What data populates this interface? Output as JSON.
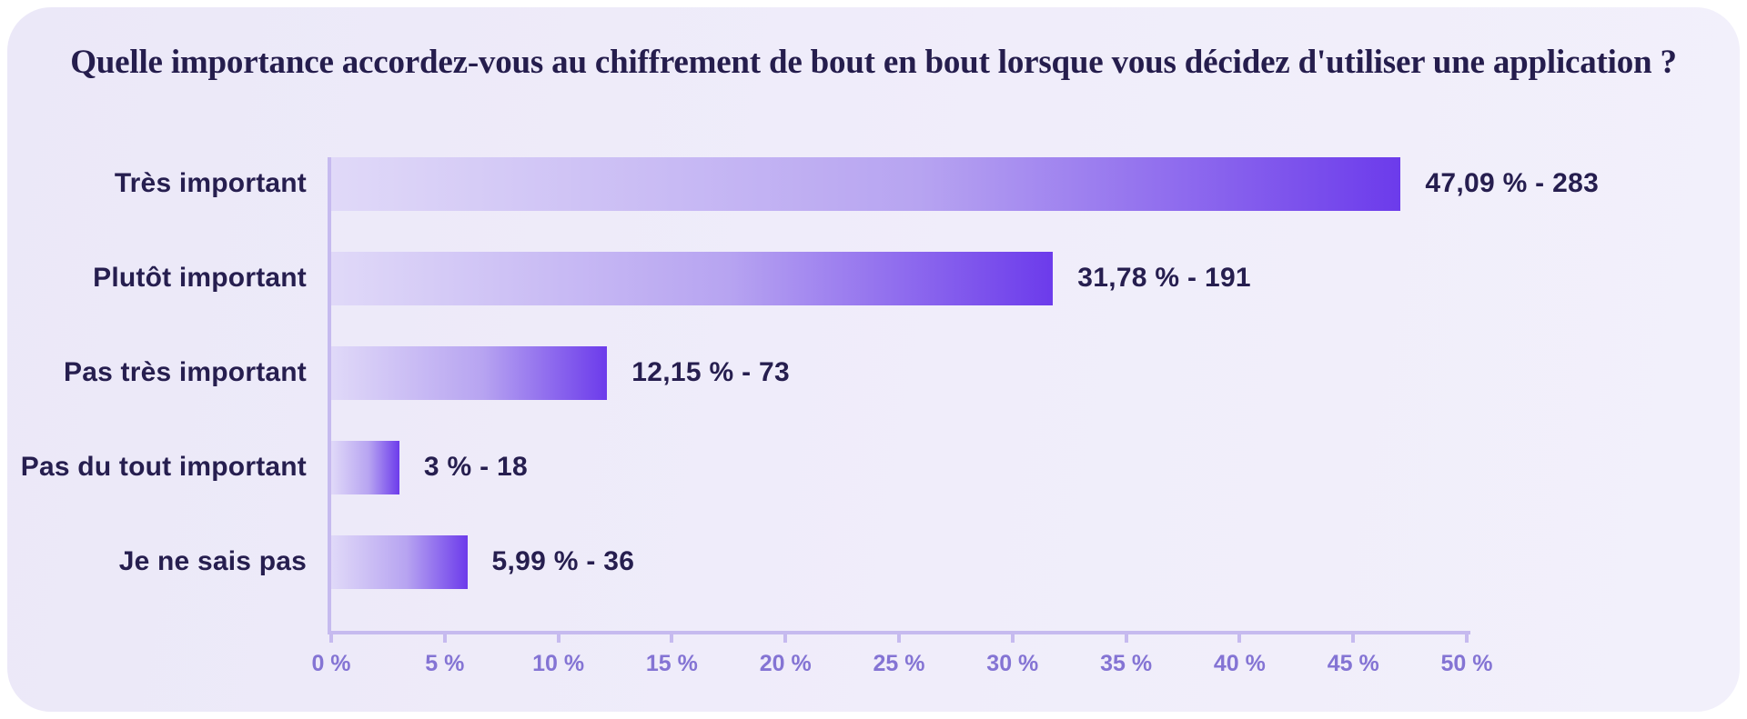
{
  "title": "Quelle importance accordez-vous au chiffrement de bout en bout lorsque vous décidez d'utiliser une application ?",
  "colors": {
    "card_background": "#efecfa",
    "text_dark": "#261e4f",
    "axis_line": "#c6baef",
    "tick_label": "#8474d4",
    "bar_gradient_start": "#e0d9f8",
    "bar_gradient_end": "#6c3beb"
  },
  "chart_data": {
    "type": "bar",
    "orientation": "horizontal",
    "title": "Quelle importance accordez-vous au chiffrement de bout en bout lorsque vous décidez d'utiliser une application ?",
    "categories": [
      "Très important",
      "Plutôt important",
      "Pas très important",
      "Pas du tout important",
      "Je ne sais pas"
    ],
    "values": [
      47.09,
      31.78,
      12.15,
      3,
      5.99
    ],
    "counts": [
      283,
      191,
      73,
      18,
      36
    ],
    "value_labels": [
      "47,09 % - 283",
      "31,78 % - 191",
      "12,15 % - 73",
      "3 % - 18",
      "5,99 % - 36"
    ],
    "xlabel": "",
    "ylabel": "",
    "xlim": [
      0,
      50
    ],
    "x_tick_labels": [
      "0 %",
      "5 %",
      "10 %",
      "15 %",
      "20 %",
      "25 %",
      "30 %",
      "35 %",
      "40 %",
      "45 %",
      "50 %"
    ],
    "grid": false,
    "legend": false
  }
}
